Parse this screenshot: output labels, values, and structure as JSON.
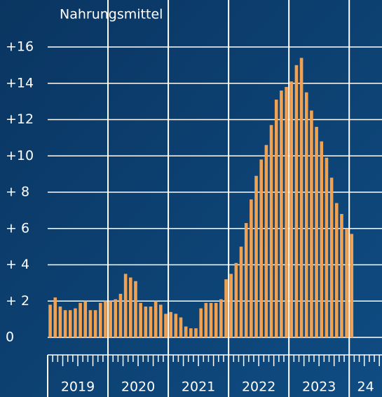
{
  "chart_data": {
    "type": "bar",
    "title": "Nahrungsmittel",
    "color": "#f0a152",
    "categories": [
      null,
      null,
      null,
      null,
      null,
      null,
      null,
      null,
      null,
      null,
      null,
      null,
      null,
      null,
      null,
      null,
      null,
      null,
      null,
      null,
      null,
      null,
      null,
      null,
      null,
      null,
      null,
      null,
      null,
      null,
      null,
      null,
      null,
      null,
      null,
      null,
      null,
      null,
      null,
      null,
      null,
      null,
      null,
      null,
      null,
      null,
      null,
      null,
      null,
      null,
      null,
      null,
      null,
      null,
      null,
      null,
      null,
      null,
      null,
      null,
      null
    ],
    "values": [
      1.8,
      2.2,
      1.7,
      1.5,
      1.5,
      1.6,
      1.9,
      2.0,
      1.5,
      1.5,
      1.9,
      2.0,
      2.0,
      2.1,
      2.4,
      3.5,
      3.3,
      3.1,
      1.9,
      1.7,
      1.7,
      2.0,
      1.8,
      1.3,
      1.4,
      1.3,
      1.1,
      0.6,
      0.5,
      0.5,
      1.6,
      1.9,
      1.9,
      1.9,
      2.1,
      3.2,
      3.5,
      4.1,
      5.0,
      6.3,
      7.6,
      8.9,
      9.8,
      10.6,
      11.7,
      13.1,
      13.6,
      13.8,
      14.1,
      15.0,
      15.4,
      13.5,
      12.5,
      11.6,
      10.8,
      9.9,
      8.8,
      7.4,
      6.8,
      6.0,
      5.7
    ],
    "year_labels": [
      "2019",
      "2020",
      "2021",
      "2022",
      "2023",
      "24"
    ],
    "ylim": [
      0,
      16
    ],
    "yticks": [
      {
        "value": 0,
        "label": "0"
      },
      {
        "value": 2,
        "label": "+ 2"
      },
      {
        "value": 4,
        "label": "+ 4"
      },
      {
        "value": 6,
        "label": "+ 6"
      },
      {
        "value": 8,
        "label": "+ 8"
      },
      {
        "value": 10,
        "label": "+10"
      },
      {
        "value": 12,
        "label": "+12"
      },
      {
        "value": 14,
        "label": "+14"
      },
      {
        "value": 16,
        "label": "+16"
      }
    ],
    "grid": true
  }
}
